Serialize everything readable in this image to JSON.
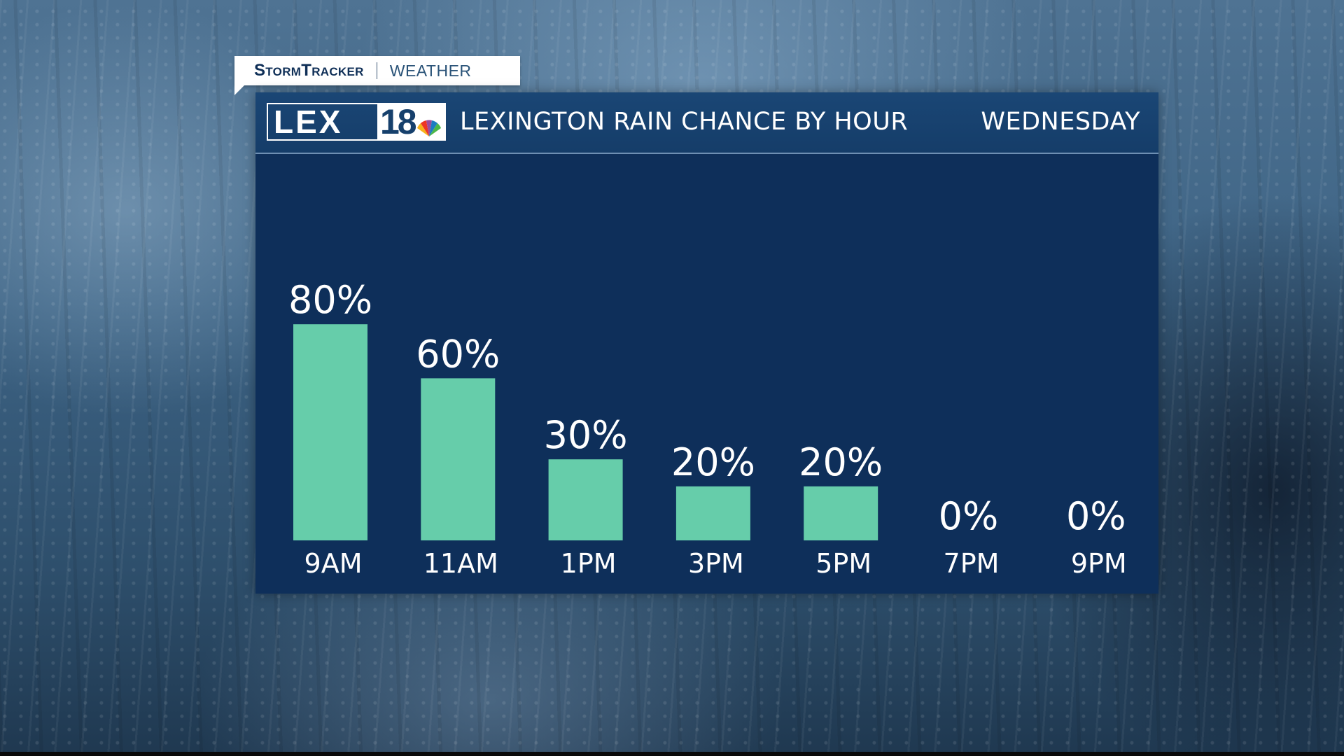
{
  "header": {
    "brand": "StormTracker",
    "section": "WEATHER",
    "station_logo_letters": "LEX",
    "station_logo_number": "18"
  },
  "chart_data": {
    "type": "bar",
    "title": "LEXINGTON RAIN CHANCE BY HOUR",
    "subtitle": "WEDNESDAY",
    "categories": [
      "9AM",
      "11AM",
      "1PM",
      "3PM",
      "5PM",
      "7PM",
      "9PM"
    ],
    "values": [
      80,
      60,
      30,
      20,
      20,
      0,
      0
    ],
    "value_labels": [
      "80%",
      "60%",
      "30%",
      "20%",
      "20%",
      "0%",
      "0%"
    ],
    "ylim": [
      0,
      100
    ],
    "grid": false,
    "legend": "none",
    "bar_color": "#66cdaa",
    "text_color": "#ffffff"
  },
  "colors": {
    "panel_background": "#0e2f5a",
    "header_background": "#1a4675",
    "brand_text": "#0f2f57"
  }
}
